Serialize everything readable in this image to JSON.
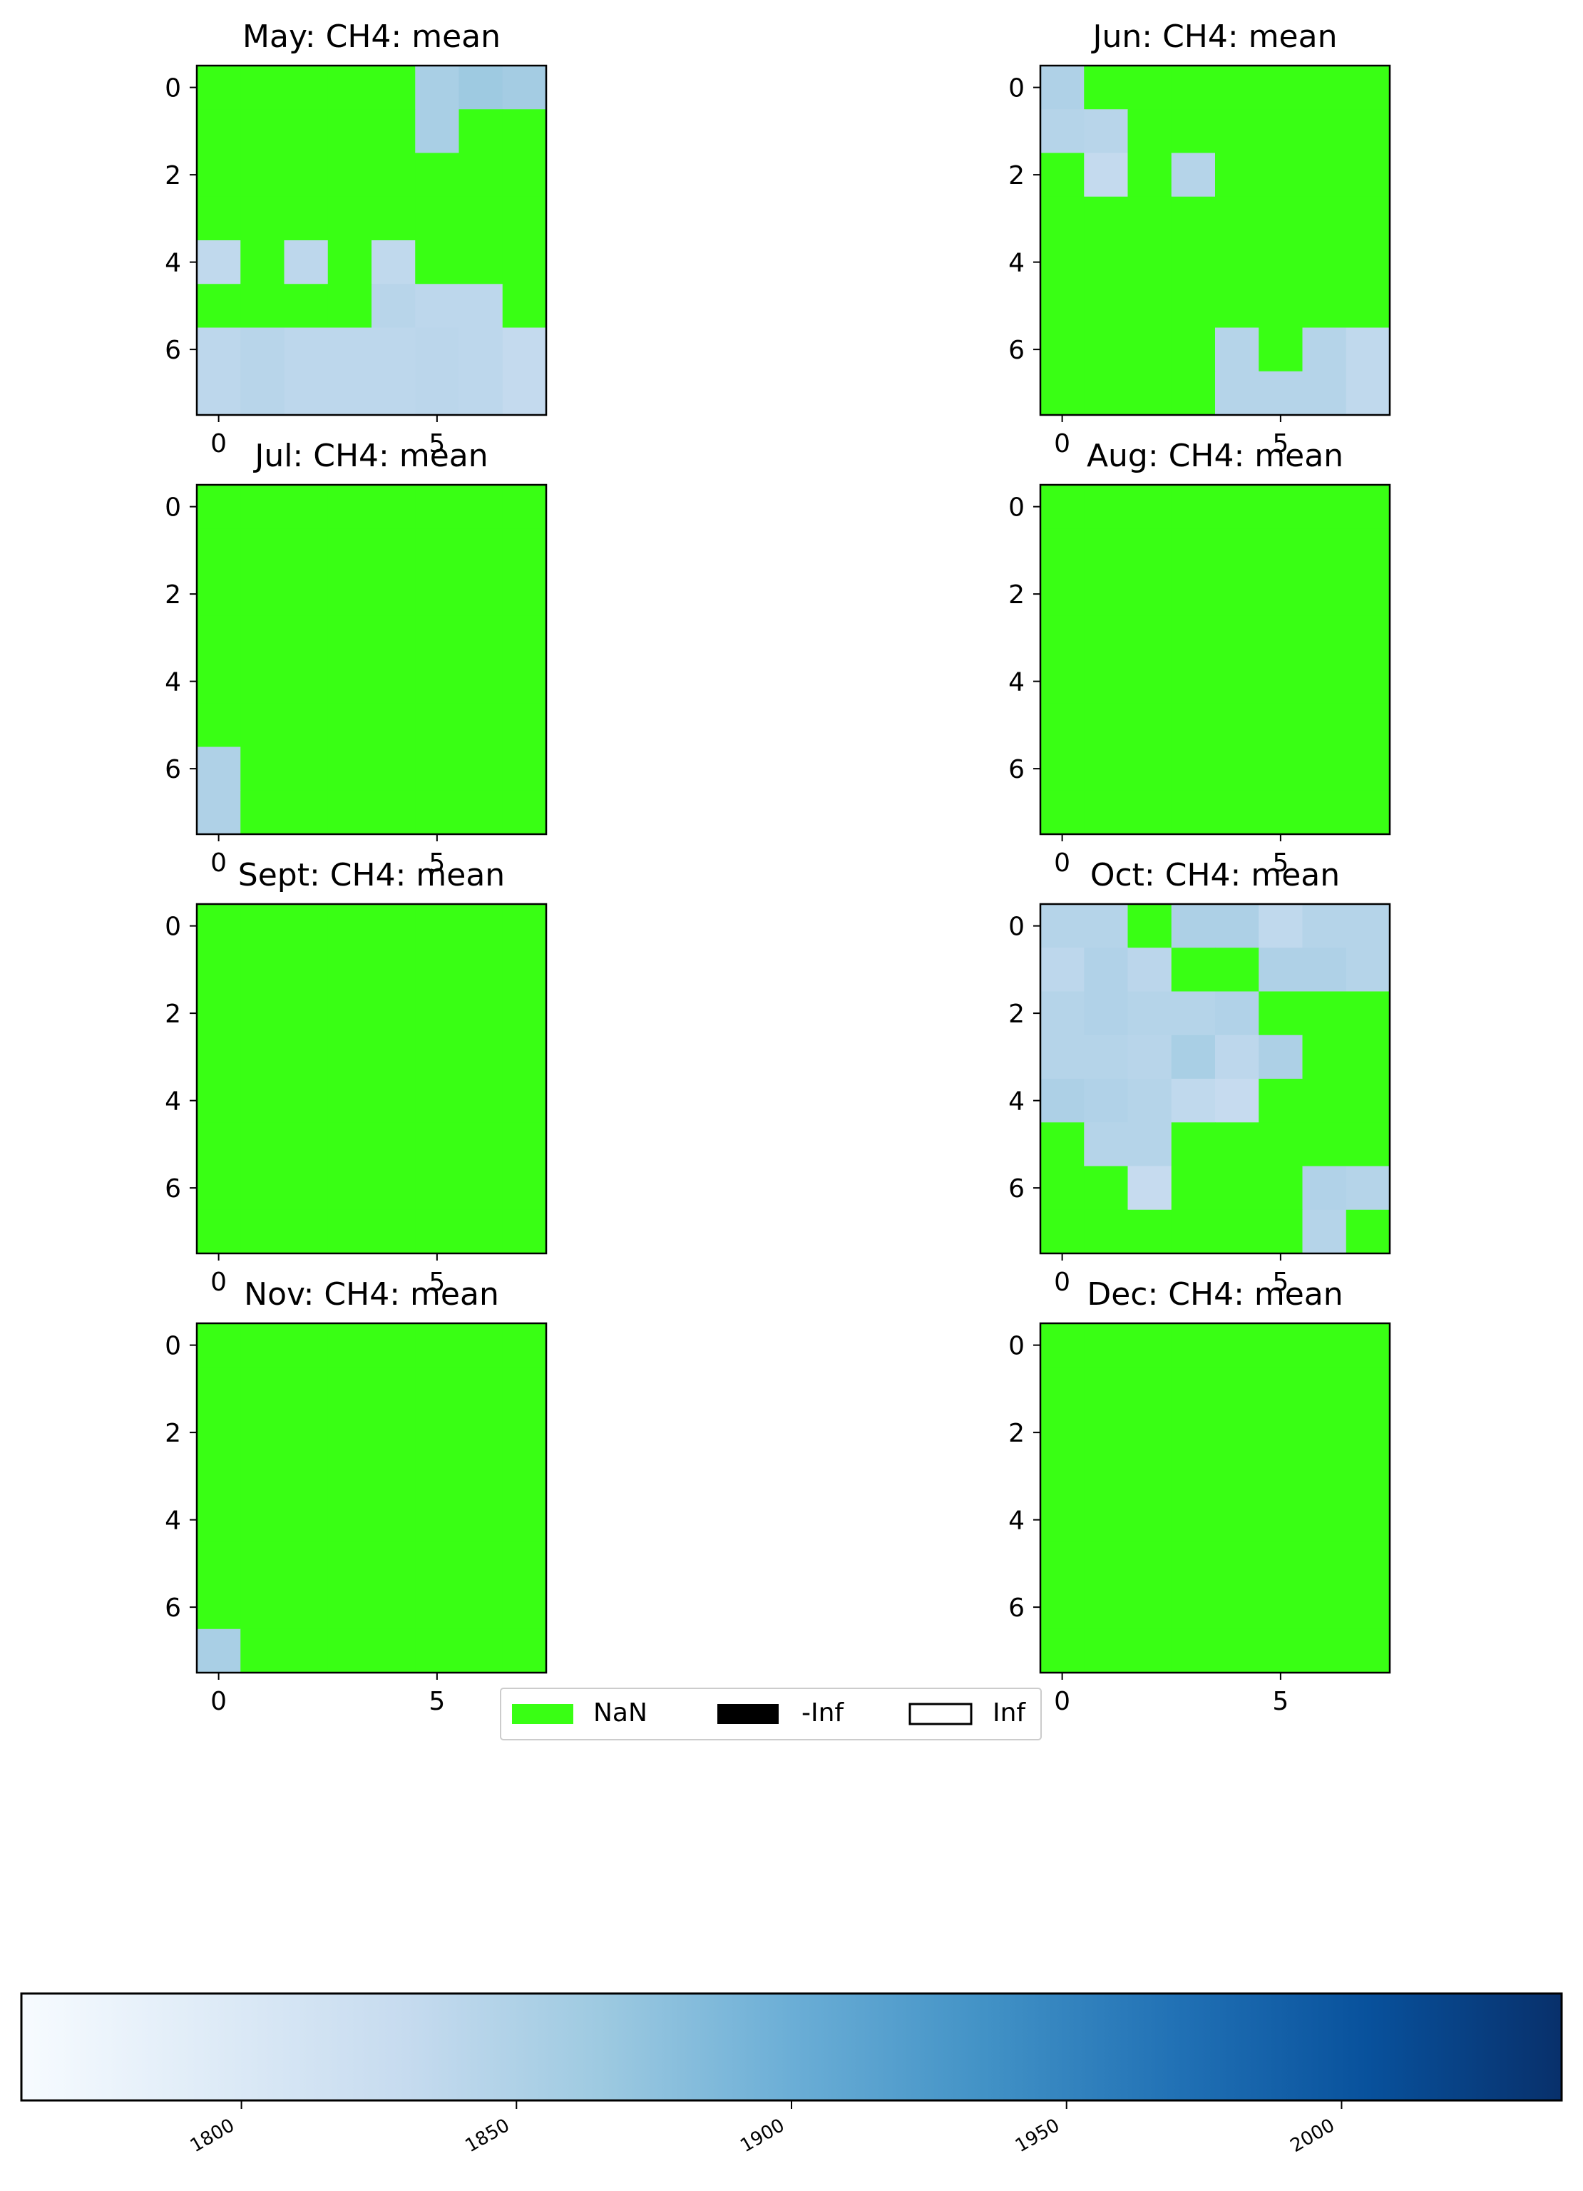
{
  "colors": {
    "nan": "#39ff14",
    "neginf": "#000000",
    "posinf": "#ffffff",
    "colormap": "Blues",
    "cmap_stops": [
      "#f7fbff",
      "#deebf7",
      "#c6dbef",
      "#9ecae1",
      "#6baed6",
      "#4292c6",
      "#2171b5",
      "#08519c",
      "#08306b"
    ]
  },
  "legend": {
    "placement": "center, below panels",
    "items": [
      {
        "label": "NaN",
        "swatch": "nan"
      },
      {
        "label": "-Inf",
        "swatch": "neginf"
      },
      {
        "label": "Inf",
        "swatch": "posinf"
      }
    ]
  },
  "colorbar": {
    "range": [
      1760,
      2040
    ],
    "ticks": [
      "1800",
      "1850",
      "1900",
      "1950",
      "2000"
    ],
    "tick_values": [
      1800,
      1850,
      1900,
      1950,
      2000
    ]
  },
  "chart_data": [
    {
      "type": "heatmap",
      "title": "May: CH4: mean",
      "xticks": [
        "0",
        "5"
      ],
      "yticks": [
        "0",
        "2",
        "4",
        "6"
      ],
      "values": [
        [
          null,
          null,
          null,
          null,
          null,
          1855,
          1865,
          1860
        ],
        [
          null,
          null,
          null,
          null,
          null,
          1855,
          null,
          null
        ],
        [
          null,
          null,
          null,
          null,
          null,
          null,
          null,
          null
        ],
        [
          null,
          null,
          null,
          null,
          null,
          null,
          null,
          null
        ],
        [
          1835,
          null,
          1838,
          null,
          1835,
          null,
          null,
          null
        ],
        [
          null,
          null,
          null,
          null,
          1842,
          1838,
          1838,
          null
        ],
        [
          1838,
          1842,
          1838,
          1838,
          1838,
          1840,
          1838,
          1832
        ],
        [
          1838,
          1842,
          1838,
          1838,
          1838,
          1840,
          1838,
          1832
        ]
      ]
    },
    {
      "type": "heatmap",
      "title": "Jun: CH4: mean",
      "xticks": [
        "0",
        "5"
      ],
      "yticks": [
        "0",
        "2",
        "4",
        "6"
      ],
      "values": [
        [
          1850,
          null,
          null,
          null,
          null,
          null,
          null,
          null
        ],
        [
          1845,
          1842,
          null,
          null,
          null,
          null,
          null,
          null
        ],
        [
          null,
          1832,
          null,
          1845,
          null,
          null,
          null,
          null
        ],
        [
          null,
          null,
          null,
          null,
          null,
          null,
          null,
          null
        ],
        [
          null,
          null,
          null,
          null,
          null,
          null,
          null,
          null
        ],
        [
          null,
          null,
          null,
          null,
          null,
          null,
          null,
          null
        ],
        [
          null,
          null,
          null,
          null,
          1845,
          null,
          1845,
          1835
        ],
        [
          null,
          null,
          null,
          null,
          1845,
          1845,
          1845,
          1835
        ]
      ]
    },
    {
      "type": "heatmap",
      "title": "Jul: CH4: mean",
      "xticks": [
        "0",
        "5"
      ],
      "yticks": [
        "0",
        "2",
        "4",
        "6"
      ],
      "values": [
        [
          null,
          null,
          null,
          null,
          null,
          null,
          null,
          null
        ],
        [
          null,
          null,
          null,
          null,
          null,
          null,
          null,
          null
        ],
        [
          null,
          null,
          null,
          null,
          null,
          null,
          null,
          null
        ],
        [
          null,
          null,
          null,
          null,
          null,
          null,
          null,
          null
        ],
        [
          null,
          null,
          null,
          null,
          null,
          null,
          null,
          null
        ],
        [
          null,
          null,
          null,
          null,
          null,
          null,
          null,
          null
        ],
        [
          1850,
          null,
          null,
          null,
          null,
          null,
          null,
          null
        ],
        [
          1850,
          null,
          null,
          null,
          null,
          null,
          null,
          null
        ]
      ]
    },
    {
      "type": "heatmap",
      "title": "Aug: CH4: mean",
      "xticks": [
        "0",
        "5"
      ],
      "yticks": [
        "0",
        "2",
        "4",
        "6"
      ],
      "values": [
        [
          null,
          null,
          null,
          null,
          null,
          null,
          null,
          null
        ],
        [
          null,
          null,
          null,
          null,
          null,
          null,
          null,
          null
        ],
        [
          null,
          null,
          null,
          null,
          null,
          null,
          null,
          null
        ],
        [
          null,
          null,
          null,
          null,
          null,
          null,
          null,
          null
        ],
        [
          null,
          null,
          null,
          null,
          null,
          null,
          null,
          null
        ],
        [
          null,
          null,
          null,
          null,
          null,
          null,
          null,
          null
        ],
        [
          null,
          null,
          null,
          null,
          null,
          null,
          null,
          null
        ],
        [
          null,
          null,
          null,
          null,
          null,
          null,
          null,
          null
        ]
      ]
    },
    {
      "type": "heatmap",
      "title": "Sept: CH4: mean",
      "xticks": [
        "0",
        "5"
      ],
      "yticks": [
        "0",
        "2",
        "4",
        "6"
      ],
      "values": [
        [
          null,
          null,
          null,
          null,
          null,
          null,
          null,
          null
        ],
        [
          null,
          null,
          null,
          null,
          null,
          null,
          null,
          null
        ],
        [
          null,
          null,
          null,
          null,
          null,
          null,
          null,
          null
        ],
        [
          null,
          null,
          null,
          null,
          null,
          null,
          null,
          null
        ],
        [
          null,
          null,
          null,
          null,
          null,
          null,
          null,
          null
        ],
        [
          null,
          null,
          null,
          null,
          null,
          null,
          null,
          null
        ],
        [
          null,
          null,
          null,
          null,
          null,
          null,
          null,
          null
        ],
        [
          null,
          null,
          null,
          null,
          null,
          null,
          null,
          null
        ]
      ]
    },
    {
      "type": "heatmap",
      "title": "Oct: CH4: mean",
      "xticks": [
        "0",
        "5"
      ],
      "yticks": [
        "0",
        "2",
        "4",
        "6"
      ],
      "values": [
        [
          1845,
          1845,
          null,
          1852,
          1852,
          1835,
          1845,
          1845
        ],
        [
          1838,
          1848,
          1840,
          null,
          null,
          1850,
          1850,
          1845
        ],
        [
          1845,
          1848,
          1845,
          1845,
          1848,
          null,
          null,
          null
        ],
        [
          1845,
          1845,
          1842,
          1855,
          1838,
          1852,
          null,
          null
        ],
        [
          1852,
          1848,
          1845,
          1835,
          1830,
          null,
          null,
          null
        ],
        [
          null,
          1845,
          1845,
          null,
          null,
          null,
          null,
          null
        ],
        [
          null,
          null,
          1830,
          null,
          null,
          null,
          1848,
          1845
        ],
        [
          null,
          null,
          null,
          null,
          null,
          null,
          1845,
          null
        ]
      ]
    },
    {
      "type": "heatmap",
      "title": "Nov: CH4: mean",
      "xticks": [
        "0",
        "5"
      ],
      "yticks": [
        "0",
        "2",
        "4",
        "6"
      ],
      "values": [
        [
          null,
          null,
          null,
          null,
          null,
          null,
          null,
          null
        ],
        [
          null,
          null,
          null,
          null,
          null,
          null,
          null,
          null
        ],
        [
          null,
          null,
          null,
          null,
          null,
          null,
          null,
          null
        ],
        [
          null,
          null,
          null,
          null,
          null,
          null,
          null,
          null
        ],
        [
          null,
          null,
          null,
          null,
          null,
          null,
          null,
          null
        ],
        [
          null,
          null,
          null,
          null,
          null,
          null,
          null,
          null
        ],
        [
          null,
          null,
          null,
          null,
          null,
          null,
          null,
          null
        ],
        [
          1855,
          null,
          null,
          null,
          null,
          null,
          null,
          null
        ]
      ]
    },
    {
      "type": "heatmap",
      "title": "Dec: CH4: mean",
      "xticks": [
        "0",
        "5"
      ],
      "yticks": [
        "0",
        "2",
        "4",
        "6"
      ],
      "values": [
        [
          null,
          null,
          null,
          null,
          null,
          null,
          null,
          null
        ],
        [
          null,
          null,
          null,
          null,
          null,
          null,
          null,
          null
        ],
        [
          null,
          null,
          null,
          null,
          null,
          null,
          null,
          null
        ],
        [
          null,
          null,
          null,
          null,
          null,
          null,
          null,
          null
        ],
        [
          null,
          null,
          null,
          null,
          null,
          null,
          null,
          null
        ],
        [
          null,
          null,
          null,
          null,
          null,
          null,
          null,
          null
        ],
        [
          null,
          null,
          null,
          null,
          null,
          null,
          null,
          null
        ],
        [
          null,
          null,
          null,
          null,
          null,
          null,
          null,
          null
        ]
      ]
    }
  ]
}
